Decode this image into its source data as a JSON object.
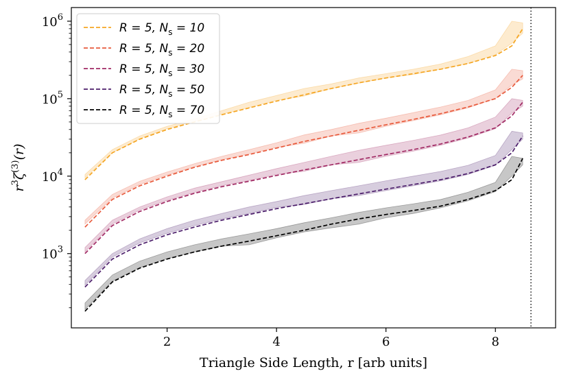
{
  "chart_data": {
    "type": "line",
    "title": "",
    "xlabel": "Triangle Side Length, r [arb units]",
    "ylabel": "r^3 ζ^(3)(r)",
    "xscale": "linear",
    "yscale": "log",
    "xlim": [
      0.25,
      9.1
    ],
    "ylim": [
      110,
      1500000.0
    ],
    "xticks": [
      2,
      4,
      6,
      8
    ],
    "xtick_labels": [
      "2",
      "4",
      "6",
      "8"
    ],
    "yticks": [
      1000,
      10000,
      100000,
      1000000
    ],
    "ytick_labels": [
      {
        "base": "10",
        "exp": "3"
      },
      {
        "base": "10",
        "exp": "4"
      },
      {
        "base": "10",
        "exp": "5"
      },
      {
        "base": "10",
        "exp": "6"
      }
    ],
    "vline": {
      "x": 8.65,
      "style": "dotted"
    },
    "legend": {
      "position": "top-left"
    },
    "x": [
      0.5,
      1.0,
      1.5,
      2.0,
      2.5,
      3.0,
      3.5,
      4.0,
      4.5,
      5.0,
      5.5,
      6.0,
      6.5,
      7.0,
      7.5,
      8.0,
      8.3,
      8.5
    ],
    "series": [
      {
        "name": "R = 5, N_s = 10",
        "legend_text": "R = 5, N",
        "legend_sub": "s",
        "legend_tail": " = 10",
        "color": "#f5a623",
        "values": [
          9000,
          20000,
          30000,
          40000,
          50000,
          62000,
          76000,
          93000,
          112000,
          135000,
          160000,
          185000,
          210000,
          240000,
          285000,
          360000,
          480000,
          800000
        ],
        "band_low": [
          9500,
          20000,
          30500,
          41000,
          51000,
          63000,
          77000,
          95000,
          108000,
          135000,
          158000,
          185000,
          205000,
          240000,
          285000,
          370000,
          520000,
          700000
        ],
        "band_high": [
          10500,
          22000,
          33000,
          44000,
          55000,
          70000,
          90000,
          110000,
          135000,
          155000,
          185000,
          210000,
          240000,
          280000,
          350000,
          480000,
          1000000,
          950000
        ]
      },
      {
        "name": "R = 5, N_s = 20",
        "legend_text": "R = 5, N",
        "legend_sub": "s",
        "legend_tail": " = 20",
        "color": "#e85a3c",
        "values": [
          2200,
          5000,
          7500,
          10000,
          13000,
          16000,
          19000,
          23000,
          28000,
          33000,
          39000,
          46000,
          54000,
          64000,
          78000,
          100000,
          140000,
          200000
        ],
        "band_low": [
          2400,
          5200,
          7800,
          10300,
          13200,
          16300,
          19300,
          23500,
          26500,
          33000,
          36000,
          44000,
          52000,
          62000,
          76000,
          100000,
          150000,
          180000
        ],
        "band_high": [
          2700,
          5800,
          8600,
          11300,
          14500,
          18000,
          22000,
          27000,
          34000,
          40000,
          48000,
          56000,
          66000,
          78000,
          95000,
          130000,
          240000,
          230000
        ]
      },
      {
        "name": "R = 5, N_s = 30",
        "legend_text": "R = 5, N",
        "legend_sub": "s",
        "legend_tail": " = 30",
        "color": "#a12a64",
        "values": [
          1000,
          2300,
          3500,
          4700,
          6000,
          7300,
          8600,
          10200,
          12000,
          14000,
          16300,
          19000,
          22000,
          26000,
          32000,
          42000,
          60000,
          90000
        ],
        "band_low": [
          1050,
          2400,
          3650,
          4850,
          6150,
          7500,
          8800,
          10500,
          11500,
          14000,
          15000,
          18000,
          21000,
          25000,
          31000,
          41000,
          65000,
          80000
        ],
        "band_high": [
          1200,
          2700,
          4000,
          5400,
          7000,
          8500,
          10300,
          12500,
          15000,
          18000,
          21500,
          25000,
          29000,
          34000,
          42000,
          58000,
          100000,
          95000
        ]
      },
      {
        "name": "R = 5, N_s = 50",
        "legend_text": "R = 5, N",
        "legend_sub": "s",
        "legend_tail": " = 50",
        "color": "#4b1d6a",
        "values": [
          370,
          850,
          1300,
          1750,
          2200,
          2700,
          3200,
          3800,
          4400,
          5100,
          5900,
          6800,
          7800,
          9000,
          10800,
          14000,
          20000,
          33000
        ],
        "band_low": [
          390,
          900,
          1370,
          1830,
          2300,
          2800,
          3300,
          3950,
          4300,
          5100,
          5600,
          6500,
          7500,
          8700,
          10500,
          13800,
          22000,
          30000
        ],
        "band_high": [
          450,
          1000,
          1550,
          2100,
          2700,
          3300,
          4000,
          4700,
          5600,
          6500,
          7500,
          8700,
          10000,
          11500,
          13800,
          18500,
          38000,
          36000
        ]
      },
      {
        "name": "R = 5, N_s = 70",
        "legend_text": "R = 5, N",
        "legend_sub": "s",
        "legend_tail": " = 70",
        "color": "#000000",
        "values": [
          180,
          430,
          650,
          850,
          1050,
          1250,
          1450,
          1700,
          2000,
          2400,
          2800,
          3200,
          3600,
          4100,
          5000,
          6500,
          9000,
          17000
        ],
        "band_low": [
          190,
          440,
          660,
          860,
          1050,
          1250,
          1300,
          1600,
          1900,
          2150,
          2400,
          2900,
          3300,
          3900,
          4800,
          6300,
          10000,
          14000
        ],
        "band_high": [
          230,
          530,
          800,
          1050,
          1300,
          1550,
          1800,
          2100,
          2500,
          2900,
          3400,
          3900,
          4400,
          5000,
          6200,
          8300,
          18000,
          17000
        ]
      }
    ]
  }
}
